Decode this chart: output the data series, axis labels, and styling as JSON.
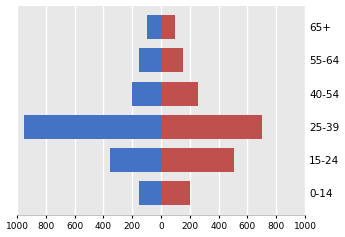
{
  "age_groups": [
    "0-14",
    "15-24",
    "25-39",
    "40-54",
    "55-64",
    "65+"
  ],
  "male": [
    150,
    355,
    950,
    205,
    155,
    100
  ],
  "female": [
    200,
    505,
    700,
    255,
    155,
    100
  ],
  "male_color": "#4472C4",
  "female_color": "#C0504D",
  "xlim": [
    -1000,
    1000
  ],
  "xticks": [
    -1000,
    -800,
    -600,
    -400,
    -200,
    0,
    200,
    400,
    600,
    800,
    1000
  ],
  "xticklabels": [
    "1000",
    "800",
    "600",
    "400",
    "200",
    "0",
    "200",
    "400",
    "600",
    "800",
    "1000"
  ],
  "bar_height": 0.72,
  "background_color": "#e8e8e8",
  "grid_color": "#ffffff"
}
